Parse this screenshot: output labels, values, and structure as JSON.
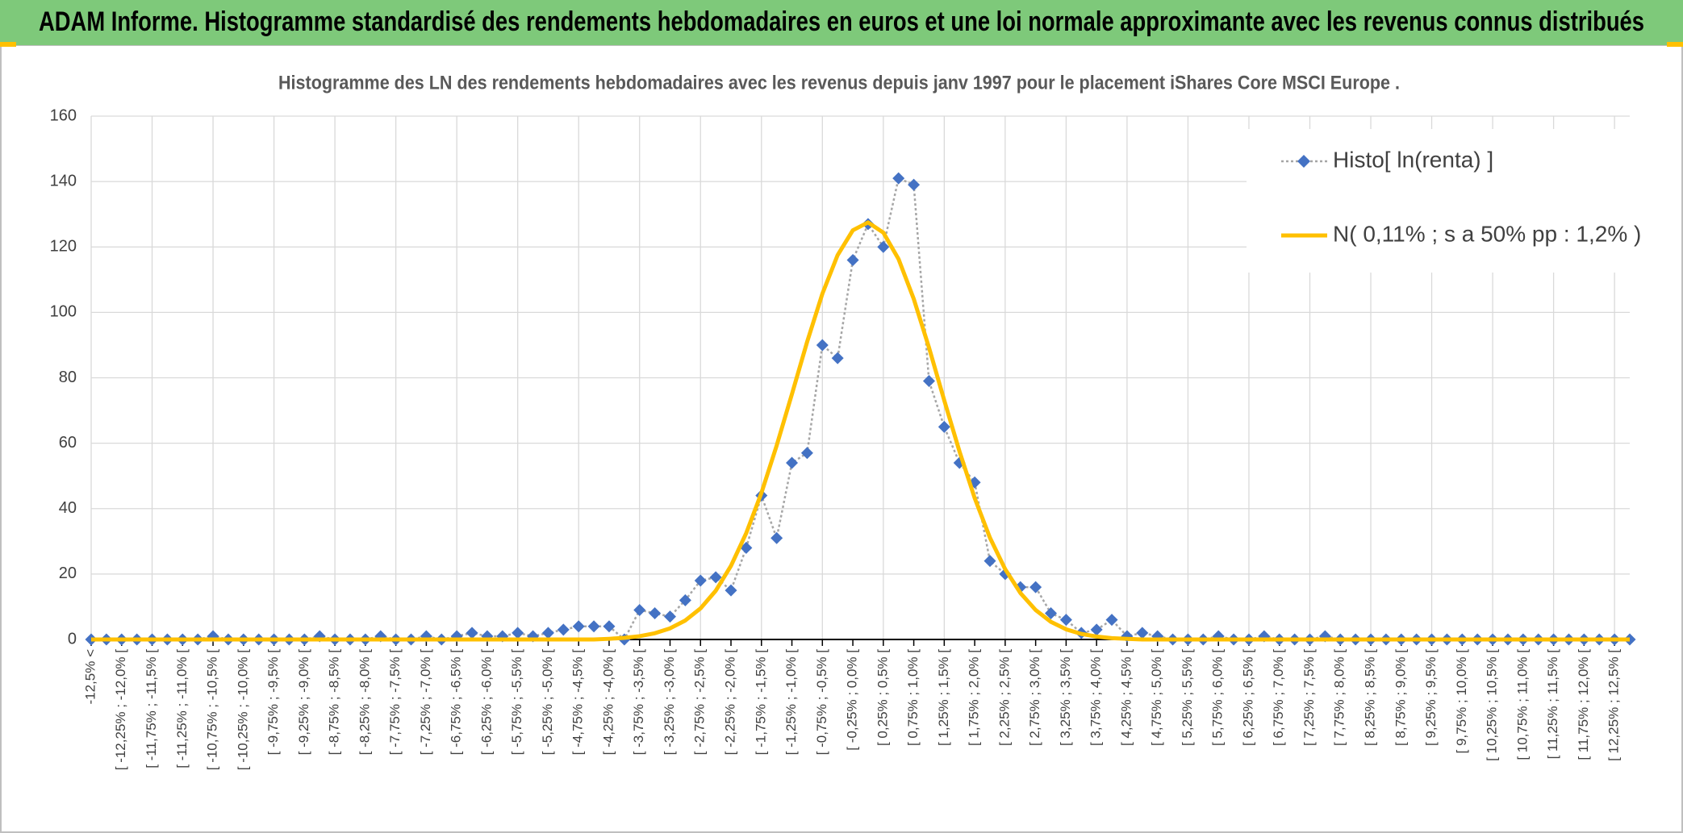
{
  "header": {
    "title": "ADAM Informe. Histogramme standardisé des rendements hebdomadaires en euros et une loi normale approximante avec les revenus connus distribués"
  },
  "chart_data": {
    "type": "line",
    "title": "Histogramme des LN des rendements hebdomadaires avec les revenus depuis janv 1997 pour le placement iShares Core MSCI Europe .",
    "categories": [
      "-12,5% <",
      null,
      "[ -12,25% ; -12,0% [",
      null,
      "[ -11,75% ; -11,5% [",
      null,
      "[ -11,25% ; -11,0% [",
      null,
      "[ -10,75% ; -10,5% [",
      null,
      "[ -10,25% ; -10,0% [",
      null,
      "[ -9,75% ; -9,5% [",
      null,
      "[ -9,25% ; -9,0% [",
      null,
      "[ -8,75% ; -8,5% [",
      null,
      "[ -8,25% ; -8,0% [",
      null,
      "[ -7,75% ; -7,5% [",
      null,
      "[ -7,25% ; -7,0% [",
      null,
      "[ -6,75% ; -6,5% [",
      null,
      "[ -6,25% ; -6,0% [",
      null,
      "[ -5,75% ; -5,5% [",
      null,
      "[ -5,25% ; -5,0% [",
      null,
      "[ -4,75% ; -4,5% [",
      null,
      "[ -4,25% ; -4,0% [",
      null,
      "[ -3,75% ; -3,5% [",
      null,
      "[ -3,25% ; -3,0% [",
      null,
      "[ -2,75% ; -2,5% [",
      null,
      "[ -2,25% ; -2,0% [",
      null,
      "[ -1,75% ; -1,5% [",
      null,
      "[ -1,25% ; -1,0% [",
      null,
      "[ -0,75% ; -0,5% [",
      null,
      "[ -0,25% ; 0,0% [",
      null,
      "[ 0,25% ; 0,5% [",
      null,
      "[ 0,75% ; 1,0% [",
      null,
      "[ 1,25% ; 1,5% [",
      null,
      "[ 1,75% ; 2,0% [",
      null,
      "[ 2,25% ; 2,5% [",
      null,
      "[ 2,75% ; 3,0% [",
      null,
      "[ 3,25% ; 3,5% [",
      null,
      "[ 3,75% ; 4,0% [",
      null,
      "[ 4,25% ; 4,5% [",
      null,
      "[ 4,75% ; 5,0% [",
      null,
      "[ 5,25% ; 5,5% [",
      null,
      "[ 5,75% ; 6,0% [",
      null,
      "[ 6,25% ; 6,5% [",
      null,
      "[ 6,75% ; 7,0% [",
      null,
      "[ 7,25% ; 7,5% [",
      null,
      "[ 7,75% ; 8,0% [",
      null,
      "[ 8,25% ; 8,5% [",
      null,
      "[ 8,75% ; 9,0% [",
      null,
      "[ 9,25% ; 9,5% [",
      null,
      "[ 9,75% ; 10,0% [",
      null,
      "[ 10,25% ; 10,5% [",
      null,
      "[ 10,75% ; 11,0% [",
      null,
      "[ 11,25% ; 11,5% [",
      null,
      "[ 11,75% ; 12,0% [",
      null,
      "[ 12,25% ; 12,5% [",
      null
    ],
    "series": [
      {
        "name": "Histo[ ln(renta) ]",
        "color": "#4472c4",
        "style": "dotted-markers",
        "values": [
          0,
          0,
          0,
          0,
          0,
          0,
          0,
          0,
          1,
          0,
          0,
          0,
          0,
          0,
          0,
          1,
          0,
          0,
          0,
          1,
          0,
          0,
          1,
          0,
          1,
          2,
          1,
          1,
          2,
          1,
          2,
          3,
          4,
          4,
          4,
          0,
          9,
          8,
          7,
          12,
          18,
          19,
          15,
          28,
          44,
          31,
          54,
          57,
          90,
          86,
          116,
          127,
          120,
          141,
          139,
          79,
          65,
          54,
          48,
          24,
          20,
          16,
          16,
          8,
          6,
          2,
          3,
          6,
          1,
          2,
          1,
          0,
          0,
          0,
          1,
          0,
          0,
          1,
          0,
          0,
          0,
          1,
          0,
          0,
          0,
          0,
          0,
          0,
          0,
          0,
          0,
          0,
          0,
          0,
          0,
          0,
          0,
          0,
          0,
          0,
          0,
          0
        ]
      },
      {
        "name": "N( 0,11% ; s a 50% pp : 1,2% )",
        "color": "#ffc000",
        "style": "solid",
        "values": [
          0,
          0,
          0,
          0,
          0,
          0,
          0,
          0,
          0,
          0,
          0,
          0,
          0,
          0,
          0,
          0,
          0,
          0,
          0,
          0,
          0,
          0,
          0,
          0,
          0,
          0,
          0,
          0,
          0,
          0,
          0,
          0,
          0,
          0,
          0.2,
          0.5,
          1.0,
          1.9,
          3.4,
          5.8,
          9.5,
          14.9,
          22.5,
          32.5,
          44.8,
          59.3,
          75.0,
          91.0,
          105.7,
          117.5,
          125.1,
          127.5,
          124.4,
          116.3,
          104.1,
          89.2,
          73.1,
          57.5,
          43.2,
          31.1,
          21.5,
          14.2,
          9.0,
          5.4,
          3.1,
          1.7,
          0.9,
          0.4,
          0.2,
          0,
          0,
          0,
          0,
          0,
          0,
          0,
          0,
          0,
          0,
          0,
          0,
          0,
          0,
          0,
          0,
          0,
          0,
          0,
          0,
          0,
          0,
          0,
          0,
          0,
          0,
          0,
          0,
          0,
          0,
          0,
          0,
          0
        ]
      }
    ],
    "ylim": [
      0,
      160
    ],
    "yticks": [
      0,
      20,
      40,
      60,
      80,
      100,
      120,
      140,
      160
    ],
    "grid": true,
    "legend": "upper right"
  }
}
